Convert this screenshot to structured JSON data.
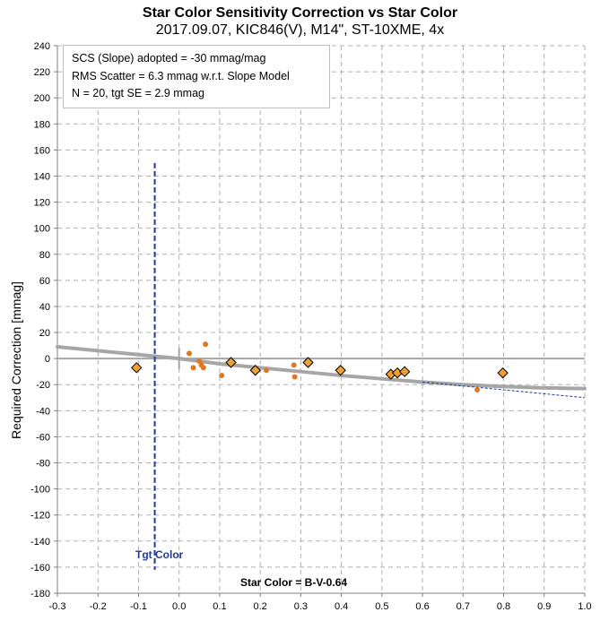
{
  "chart_data": {
    "type": "scatter",
    "title": "Star Color Sensitivity Correction vs Star Color",
    "subtitle": "2017.09.07, KIC846(V), M14\", ST-10XME, 4x",
    "ylabel": "Required Correction [mmag]",
    "xlabel": "",
    "xlim": [
      -0.3,
      1.0
    ],
    "ylim": [
      -180,
      240
    ],
    "x_ticks": [
      -0.3,
      -0.2,
      -0.1,
      0.0,
      0.1,
      0.2,
      0.3,
      0.4,
      0.5,
      0.6,
      0.7,
      0.8,
      0.9,
      1.0
    ],
    "x_tick_labels": [
      "-0.3",
      "-0.2",
      "-0.1",
      "0.0",
      "0.1",
      "0.2",
      "0.3",
      "0.4",
      "0.5",
      "0.6",
      "0.7",
      "0.8",
      "0.9",
      "1.0"
    ],
    "y_ticks": [
      240,
      220,
      200,
      180,
      160,
      140,
      120,
      100,
      80,
      60,
      40,
      20,
      0,
      -20,
      -40,
      -60,
      -80,
      -100,
      -120,
      -140,
      -160,
      -180
    ],
    "grid": true,
    "annotations": {
      "box_lines": [
        "SCS (Slope) adopted  =  -30 mmag/mag",
        "RMS Scatter = 6.3 mmag w.r.t. Slope Model",
        "N = 20,  tgt SE = 2.9 mmag"
      ],
      "tgt_color_label": "Tgt Color",
      "star_color_label": "Star Color = B-V-0.64"
    },
    "tgt_color_x": -0.06,
    "tgt_color_y_range": [
      -162,
      150
    ],
    "series": [
      {
        "marker": "diamond",
        "color": "#f0a030",
        "points": [
          {
            "x": -0.105,
            "y": -7
          },
          {
            "x": 0.128,
            "y": -3
          },
          {
            "x": 0.188,
            "y": -9
          },
          {
            "x": 0.318,
            "y": -3
          },
          {
            "x": 0.398,
            "y": -9
          },
          {
            "x": 0.522,
            "y": -12
          },
          {
            "x": 0.538,
            "y": -11
          },
          {
            "x": 0.556,
            "y": -10
          },
          {
            "x": 0.798,
            "y": -11
          }
        ]
      },
      {
        "marker": "dot",
        "color": "#e07820",
        "points": [
          {
            "x": 0.025,
            "y": 4
          },
          {
            "x": 0.035,
            "y": -7
          },
          {
            "x": 0.05,
            "y": -2
          },
          {
            "x": 0.055,
            "y": -5
          },
          {
            "x": 0.06,
            "y": -7
          },
          {
            "x": 0.065,
            "y": 11
          },
          {
            "x": 0.105,
            "y": -13
          },
          {
            "x": 0.215,
            "y": -9
          },
          {
            "x": 0.283,
            "y": -5
          },
          {
            "x": 0.285,
            "y": -14
          },
          {
            "x": 0.735,
            "y": -24
          }
        ]
      }
    ],
    "reference_lines": {
      "zero_line_color": "#a6a6a6",
      "model_curve_color": "#a6a6a6",
      "model_curve": [
        [
          -0.3,
          9
        ],
        [
          -0.2,
          6
        ],
        [
          -0.1,
          3
        ],
        [
          0.0,
          0
        ],
        [
          0.1,
          -4
        ],
        [
          0.2,
          -7
        ],
        [
          0.3,
          -10
        ],
        [
          0.4,
          -13
        ],
        [
          0.5,
          -15.5
        ],
        [
          0.6,
          -18
        ],
        [
          0.7,
          -20
        ],
        [
          0.8,
          -21.5
        ],
        [
          0.9,
          -22.5
        ],
        [
          1.0,
          -23
        ]
      ],
      "slope_line_color": "#1f3a93",
      "slope_line": [
        [
          0.6,
          -18
        ],
        [
          1.0,
          -30
        ]
      ],
      "tgt_line_color": "#1f3a93"
    }
  }
}
